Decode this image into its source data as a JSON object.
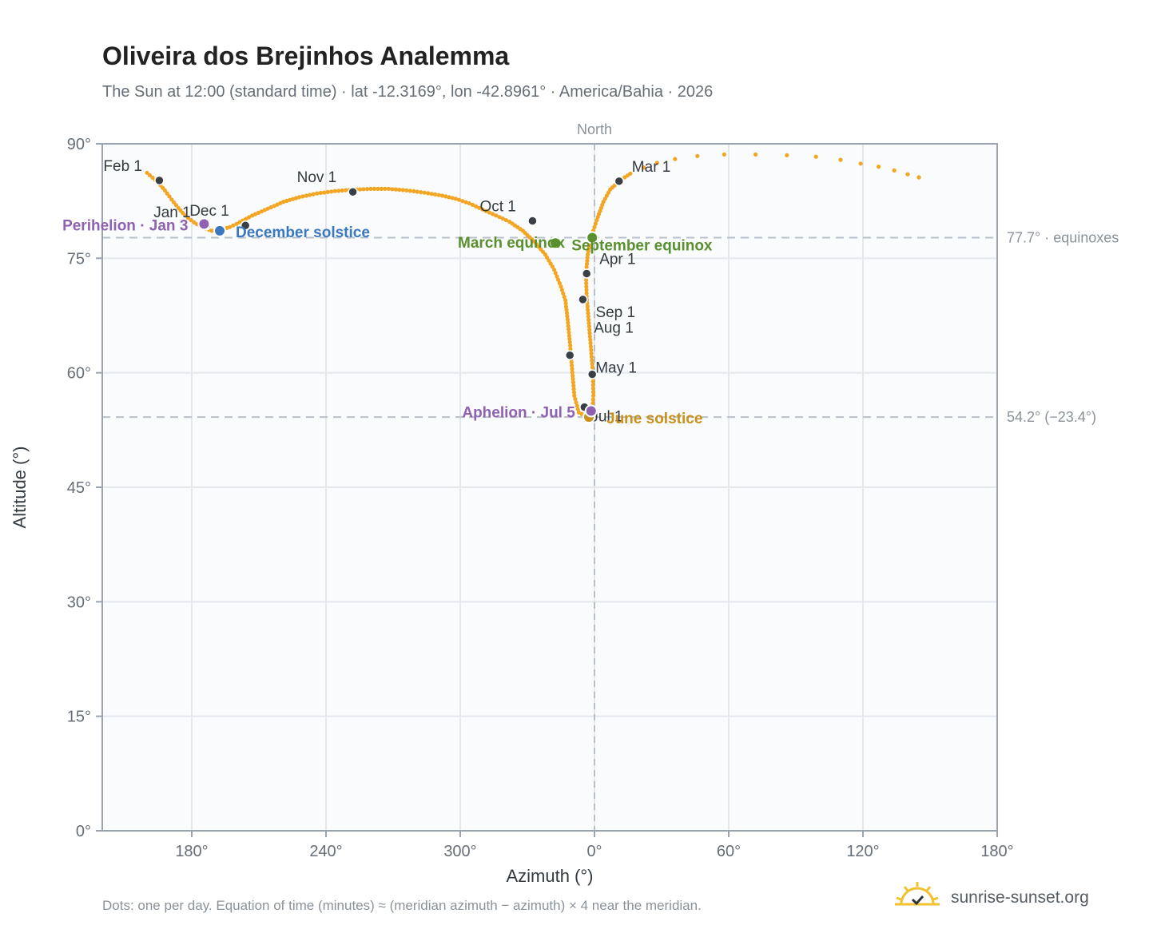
{
  "header": {
    "title": "Oliveira dos Brejinhos Analemma",
    "subtitle": "The Sun at 12:00 (standard time) · lat -12.3169°, lon -42.8961° · America/Bahia · 2026"
  },
  "footer": {
    "note": "Dots: one per day. Equation of time (minutes) ≈ (meridian azimuth − azimuth) × 4 near the meridian.",
    "brand": "sunrise-sunset.org"
  },
  "colors": {
    "curve": "#f2a623",
    "month_dot": "#3a3f45",
    "equinox": "#5a8f2e",
    "december_solstice": "#3a78c0",
    "june_solstice": "#c9901a",
    "apsis": "#8e62b0",
    "grid": "#e4e8ed",
    "plot_bg": "#f9fbfd",
    "frame": "#9aa4b0",
    "reference_line": "#b8c0c9",
    "brand_sun": "#f2c12e"
  },
  "chart_data": {
    "type": "scatter",
    "title": "Oliveira dos Brejinhos Analemma",
    "xlabel": "Azimuth (°)",
    "ylabel": "Altitude (°)",
    "x_axis_note": "azimuth increases to the left, wrapping through North (0°/360°)",
    "xlim": [
      140,
      540
    ],
    "ylim": [
      0,
      90
    ],
    "xticks": [
      {
        "value": 180,
        "label": "180°"
      },
      {
        "value": 240,
        "label": "240°"
      },
      {
        "value": 300,
        "label": "300°"
      },
      {
        "value": 360,
        "label": "0°"
      },
      {
        "value": 420,
        "label": "60°"
      },
      {
        "value": 480,
        "label": "120°"
      },
      {
        "value": 540,
        "label": "180°"
      }
    ],
    "yticks": [
      {
        "value": 0,
        "label": "0°"
      },
      {
        "value": 15,
        "label": "15°"
      },
      {
        "value": 30,
        "label": "30°"
      },
      {
        "value": 45,
        "label": "45°"
      },
      {
        "value": 60,
        "label": "60°"
      },
      {
        "value": 75,
        "label": "75°"
      },
      {
        "value": 90,
        "label": "90°"
      }
    ],
    "grid": true,
    "north_line": {
      "x": 360,
      "label": "North"
    },
    "reference_lines": [
      {
        "y": 77.7,
        "label": "77.7° · equinoxes"
      },
      {
        "y": 54.2,
        "label": "54.2° (−23.4°)"
      }
    ],
    "series": [
      {
        "kind": "daily-path",
        "points": [
          [
            160,
            86.2
          ],
          [
            165,
            84.9
          ],
          [
            168,
            83.9
          ],
          [
            171,
            82.7
          ],
          [
            174,
            81.6
          ],
          [
            177,
            80.6
          ],
          [
            181,
            79.7
          ],
          [
            185,
            79.0
          ],
          [
            189,
            78.6
          ],
          [
            193,
            78.7
          ],
          [
            197,
            79.1
          ],
          [
            200,
            79.5
          ],
          [
            207,
            80.6
          ],
          [
            214,
            81.5
          ],
          [
            221,
            82.4
          ],
          [
            228,
            83.0
          ],
          [
            236,
            83.5
          ],
          [
            244,
            83.8
          ],
          [
            252,
            84.0
          ],
          [
            260,
            84.1
          ],
          [
            268,
            84.1
          ],
          [
            276,
            83.9
          ],
          [
            284,
            83.6
          ],
          [
            292,
            83.2
          ],
          [
            298,
            82.8
          ],
          [
            304,
            82.2
          ],
          [
            310,
            81.4
          ],
          [
            316,
            80.6
          ],
          [
            322,
            79.8
          ],
          [
            328,
            78.6
          ],
          [
            333,
            77.2
          ],
          [
            338,
            75.5
          ],
          [
            342,
            73.5
          ],
          [
            345,
            71.3
          ],
          [
            347,
            69.5
          ],
          [
            348,
            67.0
          ],
          [
            349,
            64.0
          ],
          [
            350,
            60.5
          ],
          [
            351,
            57.0
          ],
          [
            353,
            54.8
          ],
          [
            357,
            54.2
          ],
          [
            359,
            55.0
          ],
          [
            359.5,
            57.0
          ],
          [
            359.3,
            59.8
          ],
          [
            358.5,
            63.0
          ],
          [
            357.5,
            66.5
          ],
          [
            356.5,
            70.0
          ],
          [
            356.2,
            73.0
          ],
          [
            357,
            75.5
          ],
          [
            358.5,
            77.7
          ],
          [
            361,
            80.0
          ],
          [
            364,
            82.4
          ],
          [
            367,
            84.0
          ],
          [
            371,
            85.1
          ],
          [
            376,
            86.1
          ],
          [
            382,
            86.9
          ],
          [
            388,
            87.5
          ],
          [
            396,
            88.0
          ],
          [
            406,
            88.4
          ],
          [
            418,
            88.6
          ],
          [
            432,
            88.6
          ],
          [
            446,
            88.5
          ],
          [
            459,
            88.3
          ],
          [
            470,
            87.9
          ],
          [
            479,
            87.4
          ],
          [
            487,
            87.0
          ],
          [
            494,
            86.5
          ],
          [
            500,
            86.0
          ],
          [
            505,
            85.6
          ]
        ]
      }
    ],
    "month_markers": [
      {
        "label": "Jan 1",
        "azimuth": 186.5,
        "altitude": 79.3
      },
      {
        "label": "Feb 1",
        "azimuth": 165.5,
        "altitude": 85.2
      },
      {
        "label": "Mar 1",
        "azimuth": 371,
        "altitude": 85.1
      },
      {
        "label": "Apr 1",
        "azimuth": 356.5,
        "altitude": 73.0
      },
      {
        "label": "May 1",
        "azimuth": 359,
        "altitude": 59.8
      },
      {
        "label": "Jul 1",
        "azimuth": 355.5,
        "altitude": 55.5
      },
      {
        "label": "Aug 1",
        "azimuth": 349,
        "altitude": 62.3
      },
      {
        "label": "Sep 1",
        "azimuth": 354.8,
        "altitude": 69.6
      },
      {
        "label": "Oct 1",
        "azimuth": 332.3,
        "altitude": 79.9
      },
      {
        "label": "Nov 1",
        "azimuth": 252,
        "altitude": 83.7
      },
      {
        "label": "Dec 1",
        "azimuth": 204,
        "altitude": 79.3
      }
    ],
    "events": [
      {
        "label": "March equinox",
        "azimuth": 342.5,
        "altitude": 77.0,
        "kind": "equinox"
      },
      {
        "label": "September equinox",
        "azimuth": 359,
        "altitude": 77.7,
        "kind": "equinox"
      },
      {
        "label": "December solstice",
        "azimuth": 192.5,
        "altitude": 78.6,
        "kind": "december_solstice"
      },
      {
        "label": "June solstice",
        "azimuth": 357.5,
        "altitude": 54.2,
        "kind": "june_solstice"
      },
      {
        "label": "Perihelion · Jan 3",
        "azimuth": 185.5,
        "altitude": 79.5,
        "kind": "apsis"
      },
      {
        "label": "Aphelion · Jul 5",
        "azimuth": 358.5,
        "altitude": 55.0,
        "kind": "apsis"
      }
    ]
  }
}
